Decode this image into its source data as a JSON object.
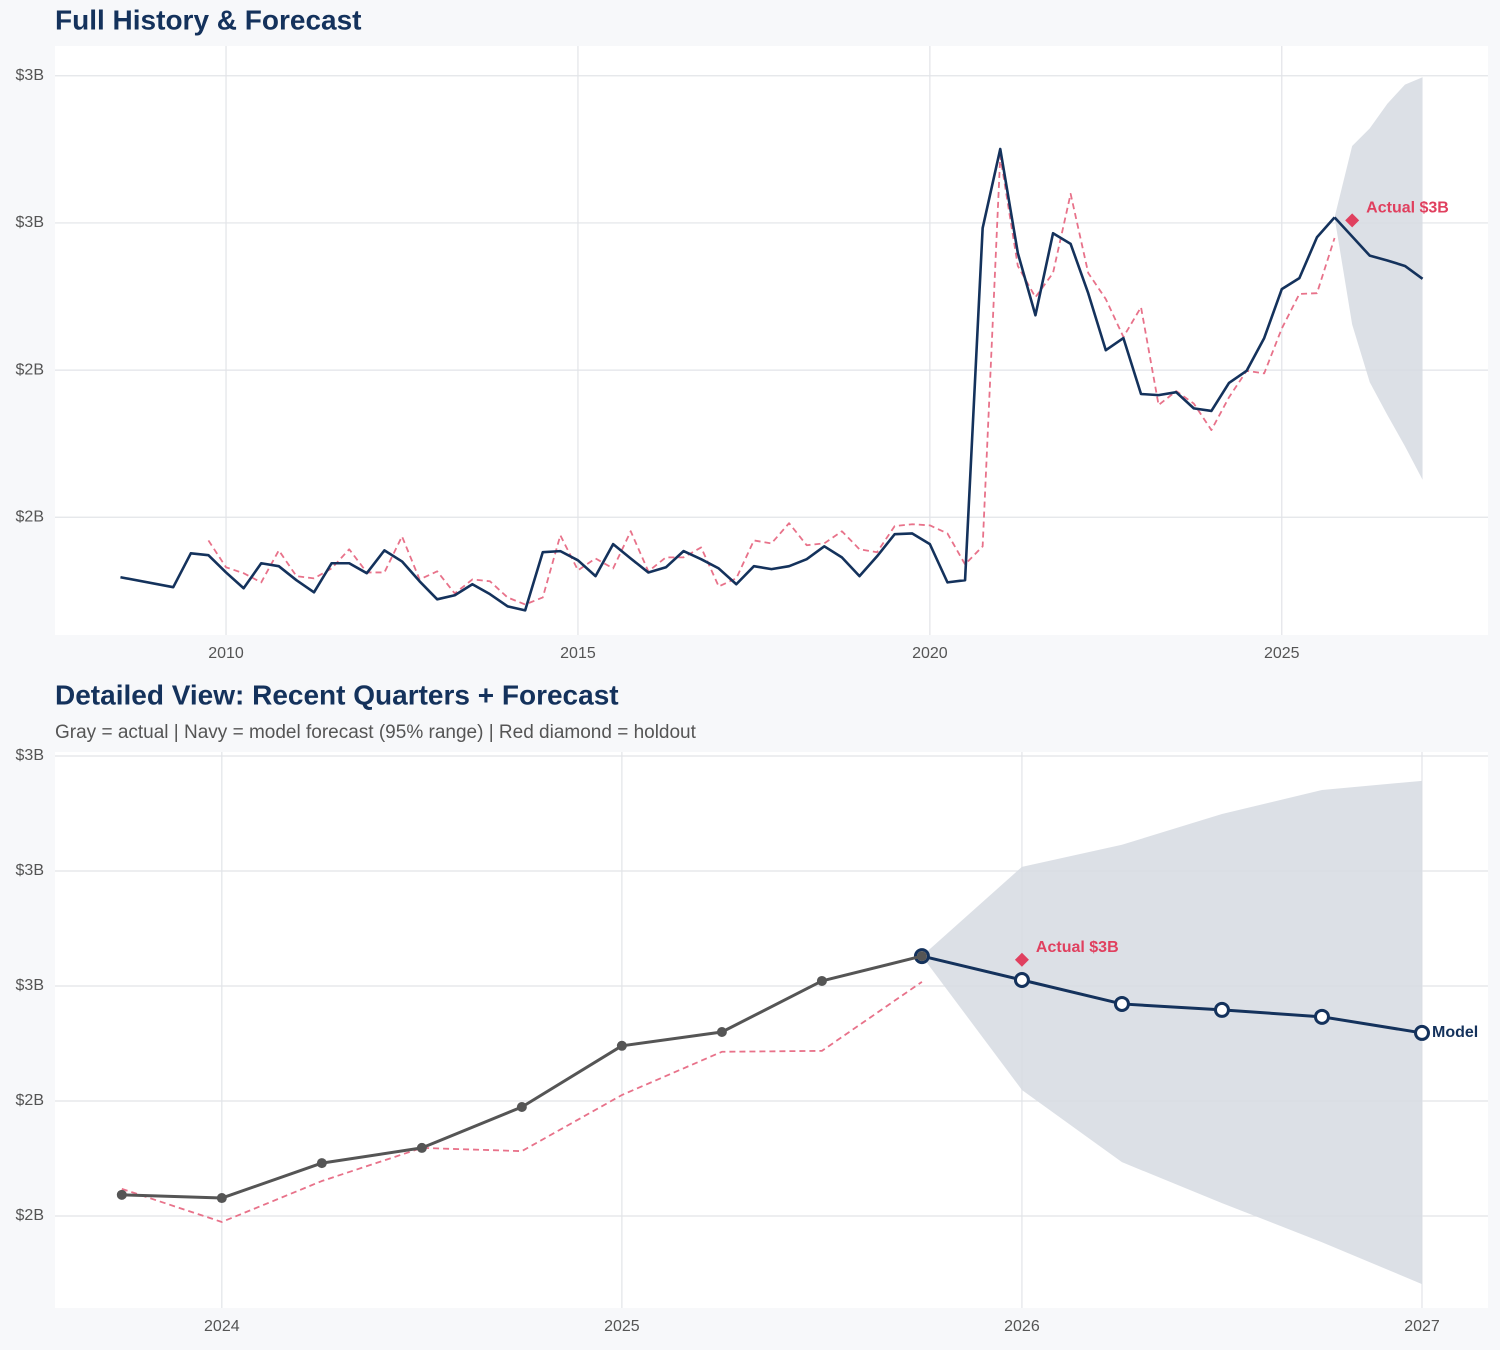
{
  "chart_data": [
    {
      "type": "line",
      "title": "Full History & Forecast",
      "xlim": [
        2007.57,
        2027.93
      ],
      "ylim": [
        1.63,
        3.22
      ],
      "xticks": [
        2010,
        2015,
        2020,
        2025
      ],
      "yticks": [
        {
          "value": 1.95,
          "label": "$2B"
        },
        {
          "value": 2.35,
          "label": "$2B"
        },
        {
          "value": 2.75,
          "label": "$3B"
        },
        {
          "value": 3.15,
          "label": "$3B"
        }
      ],
      "grid": true,
      "band": {
        "color": "#d6dbe2",
        "x": [
          2025.75,
          2026,
          2026.25,
          2026.5,
          2026.75,
          2027
        ],
        "upper": [
          2.765,
          2.959,
          3.007,
          3.074,
          3.126,
          3.146
        ],
        "lower": [
          2.765,
          2.474,
          2.317,
          2.228,
          2.143,
          2.052
        ]
      },
      "series": [
        {
          "color": "#e8728a",
          "dash": true,
          "x": [
            2009.75,
            2010,
            2010.25,
            2010.5,
            2010.75,
            2011,
            2011.25,
            2011.5,
            2011.75,
            2012,
            2012.25,
            2012.5,
            2012.75,
            2013,
            2013.25,
            2013.5,
            2013.75,
            2014,
            2014.25,
            2014.5,
            2014.75,
            2015,
            2015.25,
            2015.5,
            2015.75,
            2016,
            2016.25,
            2016.5,
            2016.75,
            2017,
            2017.25,
            2017.5,
            2017.75,
            2018,
            2018.25,
            2018.5,
            2018.75,
            2019,
            2019.25,
            2019.5,
            2019.75,
            2020,
            2020.25,
            2020.5,
            2020.75,
            2021,
            2021.25,
            2021.5,
            2021.75,
            2022,
            2022.25,
            2022.5,
            2022.75,
            2023,
            2023.25,
            2023.5,
            2023.75,
            2024,
            2024.25,
            2024.5,
            2024.75,
            2025,
            2025.25,
            2025.5,
            2025.75
          ],
          "values": [
            1.887,
            1.814,
            1.798,
            1.773,
            1.86,
            1.79,
            1.784,
            1.811,
            1.863,
            1.8,
            1.8,
            1.898,
            1.781,
            1.803,
            1.743,
            1.781,
            1.776,
            1.732,
            1.713,
            1.732,
            1.901,
            1.806,
            1.838,
            1.811,
            1.912,
            1.803,
            1.841,
            1.841,
            1.868,
            1.762,
            1.784,
            1.887,
            1.879,
            1.934,
            1.874,
            1.879,
            1.912,
            1.863,
            1.855,
            1.926,
            1.931,
            1.928,
            1.906,
            1.822,
            1.871,
            2.932,
            2.633,
            2.548,
            2.614,
            2.829,
            2.614,
            2.543,
            2.44,
            2.521,
            2.255,
            2.293,
            2.259,
            2.187,
            2.276,
            2.348,
            2.341,
            2.463,
            2.557,
            2.559,
            2.709
          ]
        },
        {
          "color": "#14325c",
          "x": [
            2025.75,
            2026,
            2026.25,
            2026.5,
            2026.75,
            2027
          ],
          "values": [
            2.765,
            2.713,
            2.661,
            2.648,
            2.633,
            2.598
          ]
        },
        {
          "color": "#14325c",
          "x": [
            2008.5,
            2009.25,
            2009.5,
            2009.75,
            2010,
            2010.25,
            2010.5,
            2010.75,
            2011,
            2011.25,
            2011.5,
            2011.75,
            2012,
            2012.25,
            2012.5,
            2012.75,
            2013,
            2013.25,
            2013.5,
            2013.75,
            2014,
            2014.25,
            2014.5,
            2014.75,
            2015,
            2015.25,
            2015.5,
            2015.75,
            2016,
            2016.25,
            2016.5,
            2016.75,
            2017,
            2017.25,
            2017.5,
            2017.75,
            2018,
            2018.25,
            2018.5,
            2018.75,
            2019,
            2019.25,
            2019.5,
            2019.75,
            2020,
            2020.25,
            2020.5,
            2020.75,
            2021,
            2021.25,
            2021.5,
            2021.75,
            2022,
            2022.25,
            2022.5,
            2022.75,
            2023,
            2023.25,
            2023.5,
            2023.75,
            2024,
            2024.25,
            2024.5,
            2024.75,
            2025,
            2025.25,
            2025.5,
            2025.75
          ],
          "values": [
            1.787,
            1.76,
            1.852,
            1.847,
            1.8,
            1.757,
            1.825,
            1.817,
            1.779,
            1.746,
            1.825,
            1.825,
            1.798,
            1.86,
            1.83,
            1.776,
            1.727,
            1.738,
            1.768,
            1.741,
            1.708,
            1.697,
            1.855,
            1.858,
            1.833,
            1.79,
            1.877,
            1.838,
            1.8,
            1.814,
            1.858,
            1.836,
            1.811,
            1.768,
            1.817,
            1.809,
            1.817,
            1.836,
            1.871,
            1.841,
            1.79,
            1.844,
            1.904,
            1.906,
            1.877,
            1.773,
            1.779,
            2.736,
            2.951,
            2.668,
            2.499,
            2.722,
            2.693,
            2.559,
            2.404,
            2.437,
            2.285,
            2.282,
            2.29,
            2.246,
            2.239,
            2.315,
            2.348,
            2.437,
            2.57,
            2.6,
            2.711,
            2.765
          ]
        }
      ],
      "annotations": [
        {
          "x": 2026,
          "y": 2.757,
          "text": "Actual $3B",
          "color": "#e0405f"
        }
      ]
    },
    {
      "type": "line",
      "title": "Detailed View: Recent Quarters + Forecast",
      "subtitle": "Gray = actual  |  Navy = model forecast (95% range)  |  Red diamond = holdout",
      "xlim": [
        2023.583,
        2027.165
      ],
      "ylim": [
        2.0,
        3.2
      ],
      "xticks": [
        2024,
        2025,
        2026,
        2027
      ],
      "yticks": [
        {
          "value": 2.2,
          "label": "$2B"
        },
        {
          "value": 2.45,
          "label": "$2B"
        },
        {
          "value": 2.7,
          "label": "$3B"
        },
        {
          "value": 2.95,
          "label": "$3B"
        },
        {
          "value": 3.2,
          "label": "$3B"
        }
      ],
      "grid": true,
      "band": {
        "color": "#d6dbe2",
        "x": [
          2025.75,
          2026,
          2026.25,
          2026.5,
          2026.75,
          2027
        ],
        "upper": [
          2.765,
          2.959,
          3.007,
          3.074,
          3.126,
          3.146
        ],
        "lower": [
          2.765,
          2.474,
          2.317,
          2.228,
          2.143,
          2.052
        ]
      },
      "series": [
        {
          "color": "#e8728a",
          "dash": true,
          "x": [
            2023.75,
            2024,
            2024.25,
            2024.5,
            2024.75,
            2025,
            2025.25,
            2025.5,
            2025.75
          ],
          "values": [
            2.259,
            2.187,
            2.276,
            2.348,
            2.341,
            2.463,
            2.557,
            2.559,
            2.709
          ]
        },
        {
          "name": "Model",
          "color": "#14325c",
          "marker": "hollow",
          "x": [
            2025.75,
            2026,
            2026.25,
            2026.5,
            2026.75,
            2027
          ],
          "values": [
            2.765,
            2.713,
            2.661,
            2.648,
            2.633,
            2.598
          ]
        },
        {
          "color": "#555555",
          "marker": "filled",
          "x": [
            2023.75,
            2024,
            2024.25,
            2024.5,
            2024.75,
            2025,
            2025.25,
            2025.5,
            2025.75
          ],
          "values": [
            2.246,
            2.239,
            2.315,
            2.348,
            2.437,
            2.57,
            2.6,
            2.711,
            2.765
          ]
        }
      ],
      "annotations": [
        {
          "x": 2026,
          "y": 2.757,
          "text": "Actual $3B",
          "color": "#e0405f"
        }
      ]
    }
  ]
}
